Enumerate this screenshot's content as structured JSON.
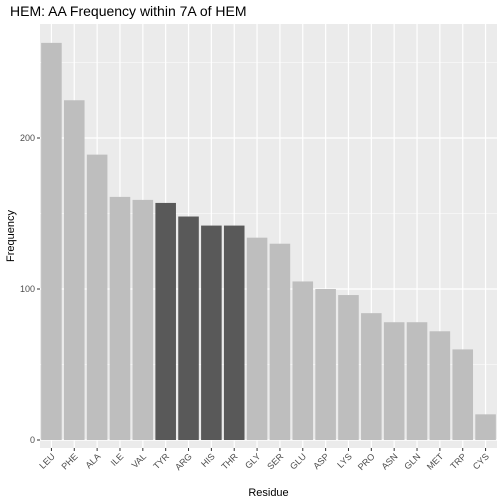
{
  "chart_data": {
    "type": "bar",
    "title": "HEM: AA Frequency within 7A of HEM",
    "xlabel": "Residue",
    "ylabel": "Frequency",
    "categories": [
      "LEU",
      "PHE",
      "ALA",
      "ILE",
      "VAL",
      "TYR",
      "ARG",
      "HIS",
      "THR",
      "GLY",
      "SER",
      "GLU",
      "ASP",
      "LYS",
      "PRO",
      "ASN",
      "GLN",
      "MET",
      "TRP",
      "CYS"
    ],
    "values": [
      263,
      225,
      189,
      161,
      159,
      157,
      148,
      142,
      142,
      134,
      130,
      105,
      100,
      96,
      84,
      78,
      78,
      72,
      60,
      17
    ],
    "highlighted": [
      "TYR",
      "ARG",
      "HIS",
      "THR"
    ],
    "yticks": [
      0,
      100,
      200
    ],
    "ylim": [
      0,
      276
    ],
    "grid": true,
    "colors": {
      "panel": "#ebebeb",
      "gridline": "#ffffff",
      "bar": "#bebebe",
      "bar_highlight": "#595959",
      "axis_text": "#4d4d4d",
      "axis_title": "#000000"
    }
  }
}
